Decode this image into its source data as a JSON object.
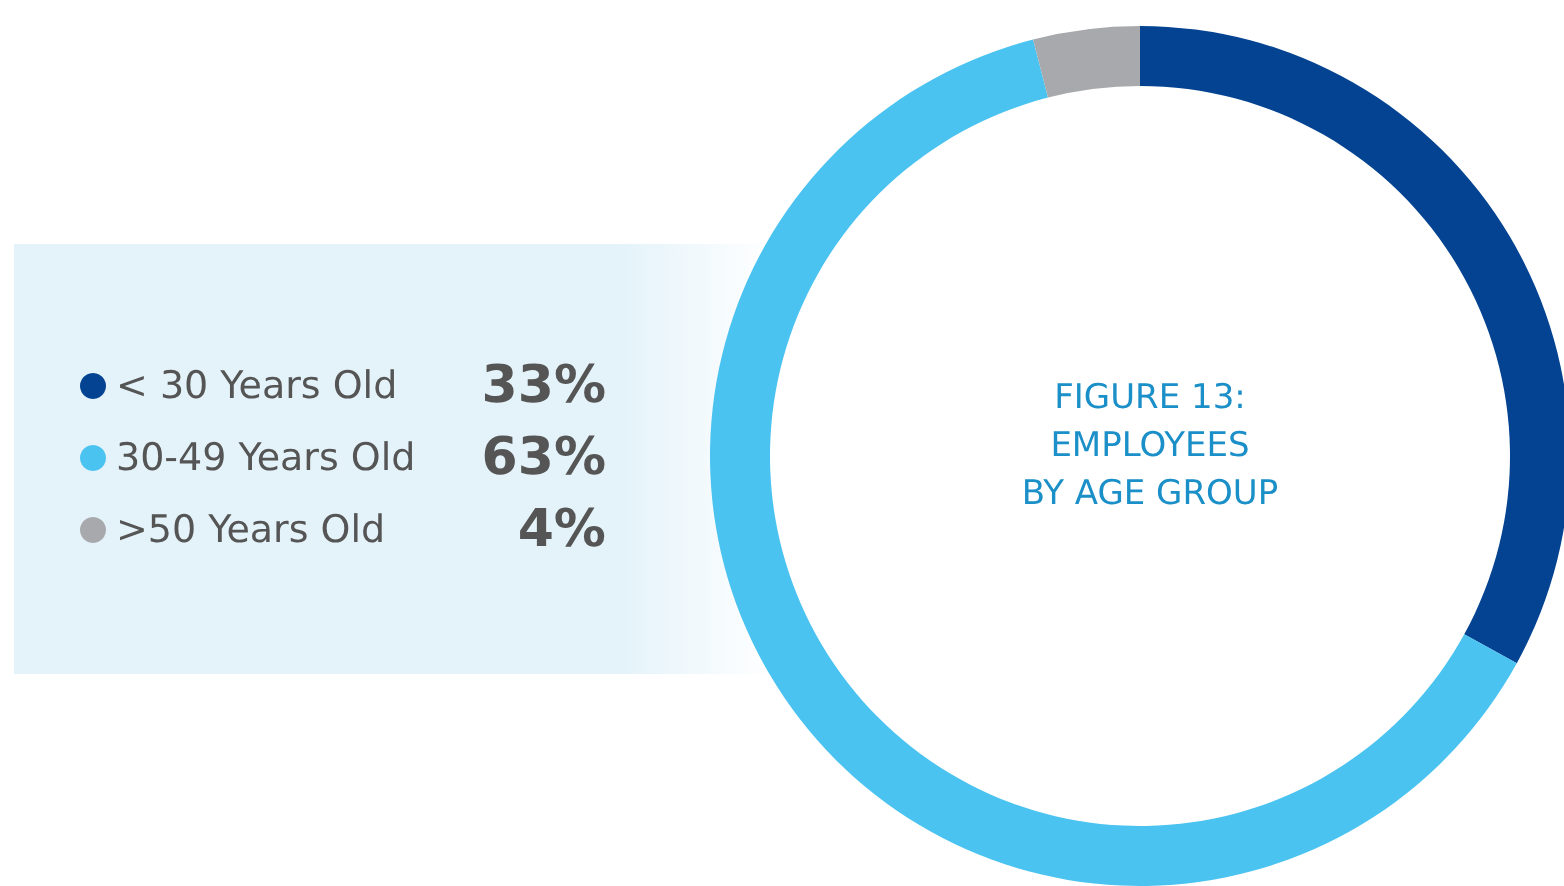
{
  "chart_data": {
    "type": "donut",
    "title": "FIGURE 13:\nEMPLOYEES\nBY AGE GROUP",
    "categories": [
      "< 30 Years Old",
      "30-49 Years Old",
      ">50 Years Old"
    ],
    "values": [
      33,
      63,
      4
    ],
    "colors": [
      "#034391",
      "#4bc3f1",
      "#a7a9ac"
    ],
    "value_labels": [
      "33%",
      "63%",
      "4%"
    ],
    "legend": "left"
  }
}
